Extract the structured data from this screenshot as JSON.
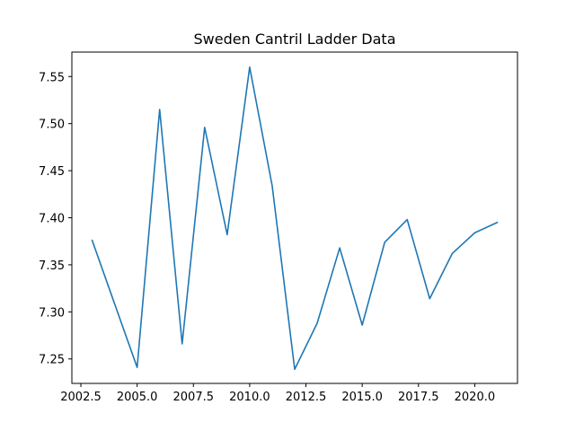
{
  "chart_data": {
    "type": "line",
    "title": "Sweden Cantril Ladder Data",
    "xlabel": "",
    "ylabel": "",
    "xlim": [
      2002.1,
      2021.9
    ],
    "ylim": [
      7.224,
      7.576
    ],
    "x_ticks": [
      2002.5,
      2005.0,
      2007.5,
      2010.0,
      2012.5,
      2015.0,
      2017.5,
      2020.0
    ],
    "x_tick_labels": [
      "2002.5",
      "2005.0",
      "2007.5",
      "2010.0",
      "2012.5",
      "2015.0",
      "2017.5",
      "2020.0"
    ],
    "y_ticks": [
      7.25,
      7.3,
      7.35,
      7.4,
      7.45,
      7.5,
      7.55
    ],
    "y_tick_labels": [
      "7.25",
      "7.30",
      "7.35",
      "7.40",
      "7.45",
      "7.50",
      "7.55"
    ],
    "grid": false,
    "series": [
      {
        "color": "#1f77b4",
        "x": [
          2003,
          2005,
          2006,
          2007,
          2008,
          2009,
          2010,
          2011,
          2012,
          2013,
          2014,
          2015,
          2016,
          2017,
          2018,
          2019,
          2020,
          2021
        ],
        "y": [
          7.376,
          7.241,
          7.515,
          7.266,
          7.496,
          7.382,
          7.56,
          7.434,
          7.239,
          7.288,
          7.368,
          7.286,
          7.374,
          7.398,
          7.314,
          7.362,
          7.384,
          7.395
        ]
      }
    ]
  }
}
